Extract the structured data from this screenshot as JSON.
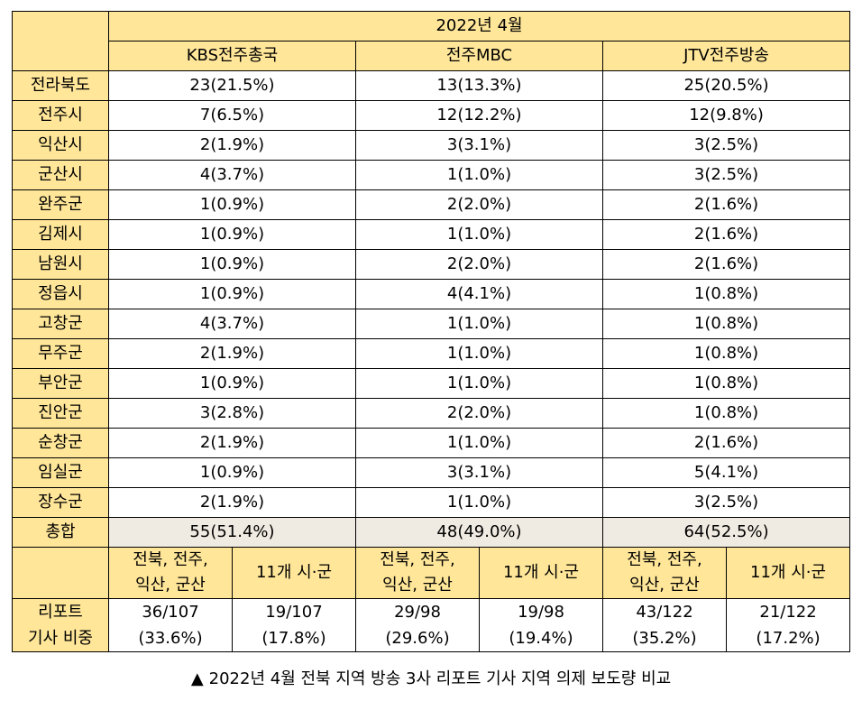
{
  "table": {
    "period": "2022년 4월",
    "stations": [
      "KBS전주총국",
      "전주MBC",
      "JTV전주방송"
    ],
    "rows": [
      {
        "region": "전라북도",
        "values": [
          "23(21.5%)",
          "13(13.3%)",
          "25(20.5%)"
        ]
      },
      {
        "region": "전주시",
        "values": [
          "7(6.5%)",
          "12(12.2%)",
          "12(9.8%)"
        ]
      },
      {
        "region": "익산시",
        "values": [
          "2(1.9%)",
          "3(3.1%)",
          "3(2.5%)"
        ]
      },
      {
        "region": "군산시",
        "values": [
          "4(3.7%)",
          "1(1.0%)",
          "3(2.5%)"
        ]
      },
      {
        "region": "완주군",
        "values": [
          "1(0.9%)",
          "2(2.0%)",
          "2(1.6%)"
        ]
      },
      {
        "region": "김제시",
        "values": [
          "1(0.9%)",
          "1(1.0%)",
          "2(1.6%)"
        ]
      },
      {
        "region": "남원시",
        "values": [
          "1(0.9%)",
          "2(2.0%)",
          "2(1.6%)"
        ]
      },
      {
        "region": "정읍시",
        "values": [
          "1(0.9%)",
          "4(4.1%)",
          "1(0.8%)"
        ]
      },
      {
        "region": "고창군",
        "values": [
          "4(3.7%)",
          "1(1.0%)",
          "1(0.8%)"
        ]
      },
      {
        "region": "무주군",
        "values": [
          "2(1.9%)",
          "1(1.0%)",
          "1(0.8%)"
        ]
      },
      {
        "region": "부안군",
        "values": [
          "1(0.9%)",
          "1(1.0%)",
          "1(0.8%)"
        ]
      },
      {
        "region": "진안군",
        "values": [
          "3(2.8%)",
          "2(2.0%)",
          "1(0.8%)"
        ]
      },
      {
        "region": "순창군",
        "values": [
          "2(1.9%)",
          "1(1.0%)",
          "2(1.6%)"
        ]
      },
      {
        "region": "임실군",
        "values": [
          "1(0.9%)",
          "3(3.1%)",
          "5(4.1%)"
        ]
      },
      {
        "region": "장수군",
        "values": [
          "2(1.9%)",
          "1(1.0%)",
          "3(2.5%)"
        ]
      }
    ],
    "total": {
      "label": "총합",
      "values": [
        "55(51.4%)",
        "48(49.0%)",
        "64(52.5%)"
      ]
    },
    "subheaders": {
      "group_a_line1": "전북, 전주,",
      "group_a_line2": "익산, 군산",
      "group_b": "11개 시·군"
    },
    "ratio": {
      "label_line1": "리포트",
      "label_line2": "기사 비중",
      "cells": [
        {
          "count": "36/107",
          "pct": "(33.6%)"
        },
        {
          "count": "19/107",
          "pct": "(17.8%)"
        },
        {
          "count": "29/98",
          "pct": "(29.6%)"
        },
        {
          "count": "19/98",
          "pct": "(19.4%)"
        },
        {
          "count": "43/122",
          "pct": "(35.2%)"
        },
        {
          "count": "21/122",
          "pct": "(17.2%)"
        }
      ]
    }
  },
  "caption": {
    "marker": "▲",
    "text": "2022년 4월 전북 지역 방송 3사 리포트 기사 지역 의제 보도량 비교"
  },
  "colors": {
    "header_fill": "#ffe699",
    "total_fill": "#f0ebe2",
    "border": "#000000"
  }
}
